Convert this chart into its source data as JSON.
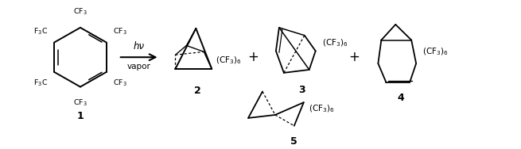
{
  "background_color": "#ffffff",
  "figure_width": 6.55,
  "figure_height": 1.88,
  "dpi": 100,
  "line_color": "#000000",
  "line_width": 1.3,
  "text_color": "#000000",
  "font_size_cf3": 7.5,
  "font_size_label": 9,
  "font_size_arrow": 8
}
